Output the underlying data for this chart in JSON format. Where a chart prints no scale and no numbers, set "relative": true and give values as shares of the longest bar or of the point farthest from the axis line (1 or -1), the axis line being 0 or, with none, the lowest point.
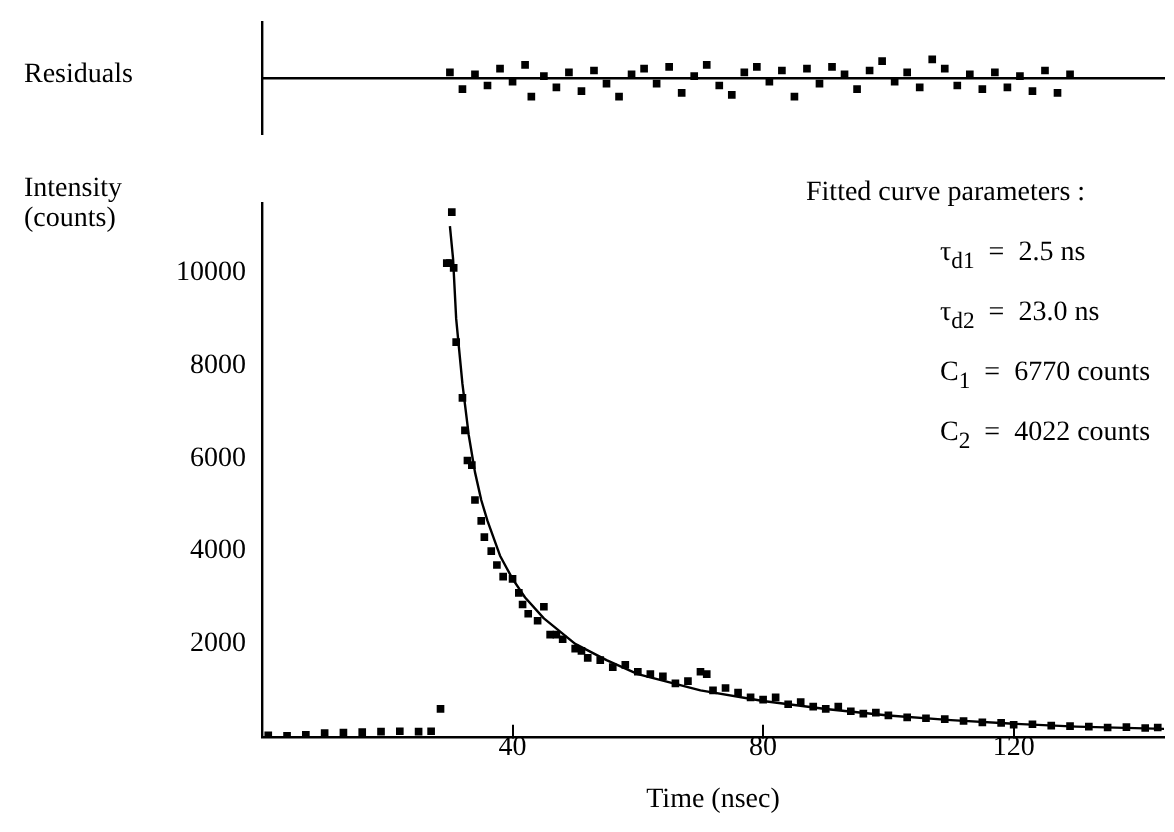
{
  "chart_data": [
    {
      "type": "scatter",
      "relative": true,
      "ylabel": "Residuals",
      "xlim": [
        0,
        144
      ],
      "marker": "square",
      "series": [
        {
          "color": "#000000",
          "x": [
            30,
            32,
            34,
            36,
            38,
            40,
            42,
            43,
            45,
            47,
            49,
            51,
            53,
            55,
            57,
            59,
            61,
            63,
            65,
            67,
            69,
            71,
            73,
            75,
            77,
            79,
            81,
            83,
            85,
            87,
            89,
            91,
            93,
            95,
            97,
            99,
            101,
            103,
            105,
            107,
            109,
            111,
            113,
            115,
            117,
            119,
            121,
            123,
            125,
            127,
            129
          ],
          "values": [
            0.3,
            -0.6,
            0.2,
            -0.4,
            0.5,
            -0.2,
            0.7,
            -1.0,
            0.1,
            -0.5,
            0.3,
            -0.7,
            0.4,
            -0.3,
            -1.0,
            0.2,
            0.5,
            -0.3,
            0.6,
            -0.8,
            0.1,
            0.7,
            -0.4,
            -0.9,
            0.3,
            0.6,
            -0.2,
            0.4,
            -1.0,
            0.5,
            -0.3,
            0.6,
            0.2,
            -0.6,
            0.4,
            0.9,
            -0.2,
            0.3,
            -0.5,
            1.0,
            0.5,
            -0.4,
            0.2,
            -0.6,
            0.3,
            -0.5,
            0.1,
            -0.7,
            0.4,
            -0.8,
            0.2
          ]
        }
      ]
    },
    {
      "type": "scatter",
      "xlabel": "Time (nsec)",
      "ylabel": "Intensity (counts)",
      "xlim": [
        0,
        144
      ],
      "xticks": [
        40,
        80,
        120
      ],
      "ylim": [
        0,
        11500
      ],
      "yticks": [
        2000,
        4000,
        6000,
        8000,
        10000
      ],
      "marker": "square",
      "annotations": [
        "Fitted curve parameters :",
        "τ$_{d1}$  =  2.5 ns",
        "τ$_{d2}$  =  23.0 ns",
        "C$_{1}$  =  6770 counts",
        "C$_{2}$  =  4022 counts"
      ],
      "series": [
        {
          "color": "#000000",
          "x": [
            1,
            4,
            7,
            10,
            13,
            16,
            19,
            22,
            25,
            27,
            28.5,
            29.5,
            30,
            30.3,
            30.6,
            31,
            32,
            32.4,
            32.8,
            33.5,
            34,
            35,
            35.5,
            36.6,
            37.5,
            38.5,
            40,
            41,
            41.6,
            42.5,
            44,
            45,
            46,
            47,
            48,
            50,
            51,
            52,
            54,
            56,
            58,
            60,
            62,
            64,
            66,
            68,
            70,
            71,
            72,
            74,
            76,
            78,
            80,
            82,
            84,
            86,
            88,
            90,
            92,
            94,
            96,
            98,
            100,
            103,
            106,
            109,
            112,
            115,
            118,
            120,
            123,
            126,
            129,
            132,
            135,
            138,
            141,
            143
          ],
          "values": [
            30,
            20,
            40,
            80,
            90,
            100,
            110,
            120,
            110,
            120,
            600,
            10200,
            10200,
            11300,
            10100,
            8500,
            7300,
            6600,
            5950,
            5850,
            5100,
            4650,
            4300,
            4000,
            3700,
            3450,
            3400,
            3100,
            2850,
            2650,
            2500,
            2800,
            2200,
            2200,
            2100,
            1900,
            1850,
            1700,
            1650,
            1500,
            1550,
            1400,
            1350,
            1300,
            1150,
            1200,
            1400,
            1350,
            1000,
            1050,
            950,
            850,
            800,
            850,
            700,
            750,
            650,
            600,
            650,
            550,
            500,
            520,
            460,
            420,
            400,
            380,
            340,
            310,
            300,
            260,
            270,
            240,
            230,
            220,
            200,
            210,
            190,
            200
          ]
        },
        {
          "type": "line",
          "color": "#000000",
          "marker": "none",
          "x": [
            30,
            30.5,
            31,
            32,
            33,
            34,
            35,
            36,
            38,
            40,
            42,
            45,
            50,
            55,
            60,
            70,
            80,
            90,
            100,
            110,
            120,
            130,
            144
          ],
          "values": [
            11000,
            10300,
            9000,
            7600,
            6500,
            5700,
            5100,
            4650,
            3900,
            3400,
            3000,
            2550,
            2000,
            1650,
            1350,
            1000,
            770,
            600,
            460,
            360,
            280,
            220,
            170
          ]
        }
      ]
    }
  ]
}
